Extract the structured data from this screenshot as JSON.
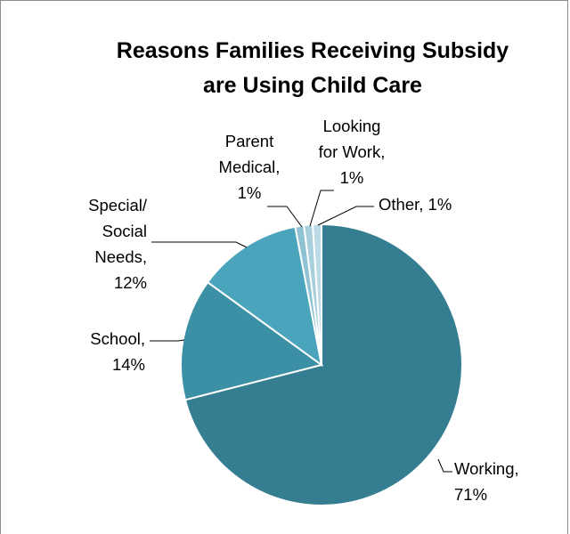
{
  "chart_data": {
    "type": "pie",
    "title": [
      "Reasons Families Receiving Subsidy",
      "are Using Child Care"
    ],
    "slices": [
      {
        "name": "Working",
        "value": 71,
        "label_lines": [
          "Working,",
          "71%"
        ],
        "color": "#357e92"
      },
      {
        "name": "School",
        "value": 14,
        "label_lines": [
          "School,",
          "14%"
        ],
        "color": "#3b90a6"
      },
      {
        "name": "Special/ Social Needs",
        "value": 12,
        "label_lines": [
          "Special/",
          "Social",
          "Needs,",
          "12%"
        ],
        "color": "#49a4bc"
      },
      {
        "name": "Parent Medical",
        "value": 1,
        "label_lines": [
          "Parent",
          "Medical,",
          "1%"
        ],
        "color": "#8fc3d3"
      },
      {
        "name": "Looking for Work",
        "value": 1,
        "label_lines": [
          "Looking",
          "for Work,",
          "1%"
        ],
        "color": "#a7cfdc"
      },
      {
        "name": "Other",
        "value": 1,
        "label_lines": [
          "Other, 1%"
        ],
        "color": "#bcdbe6"
      }
    ]
  }
}
